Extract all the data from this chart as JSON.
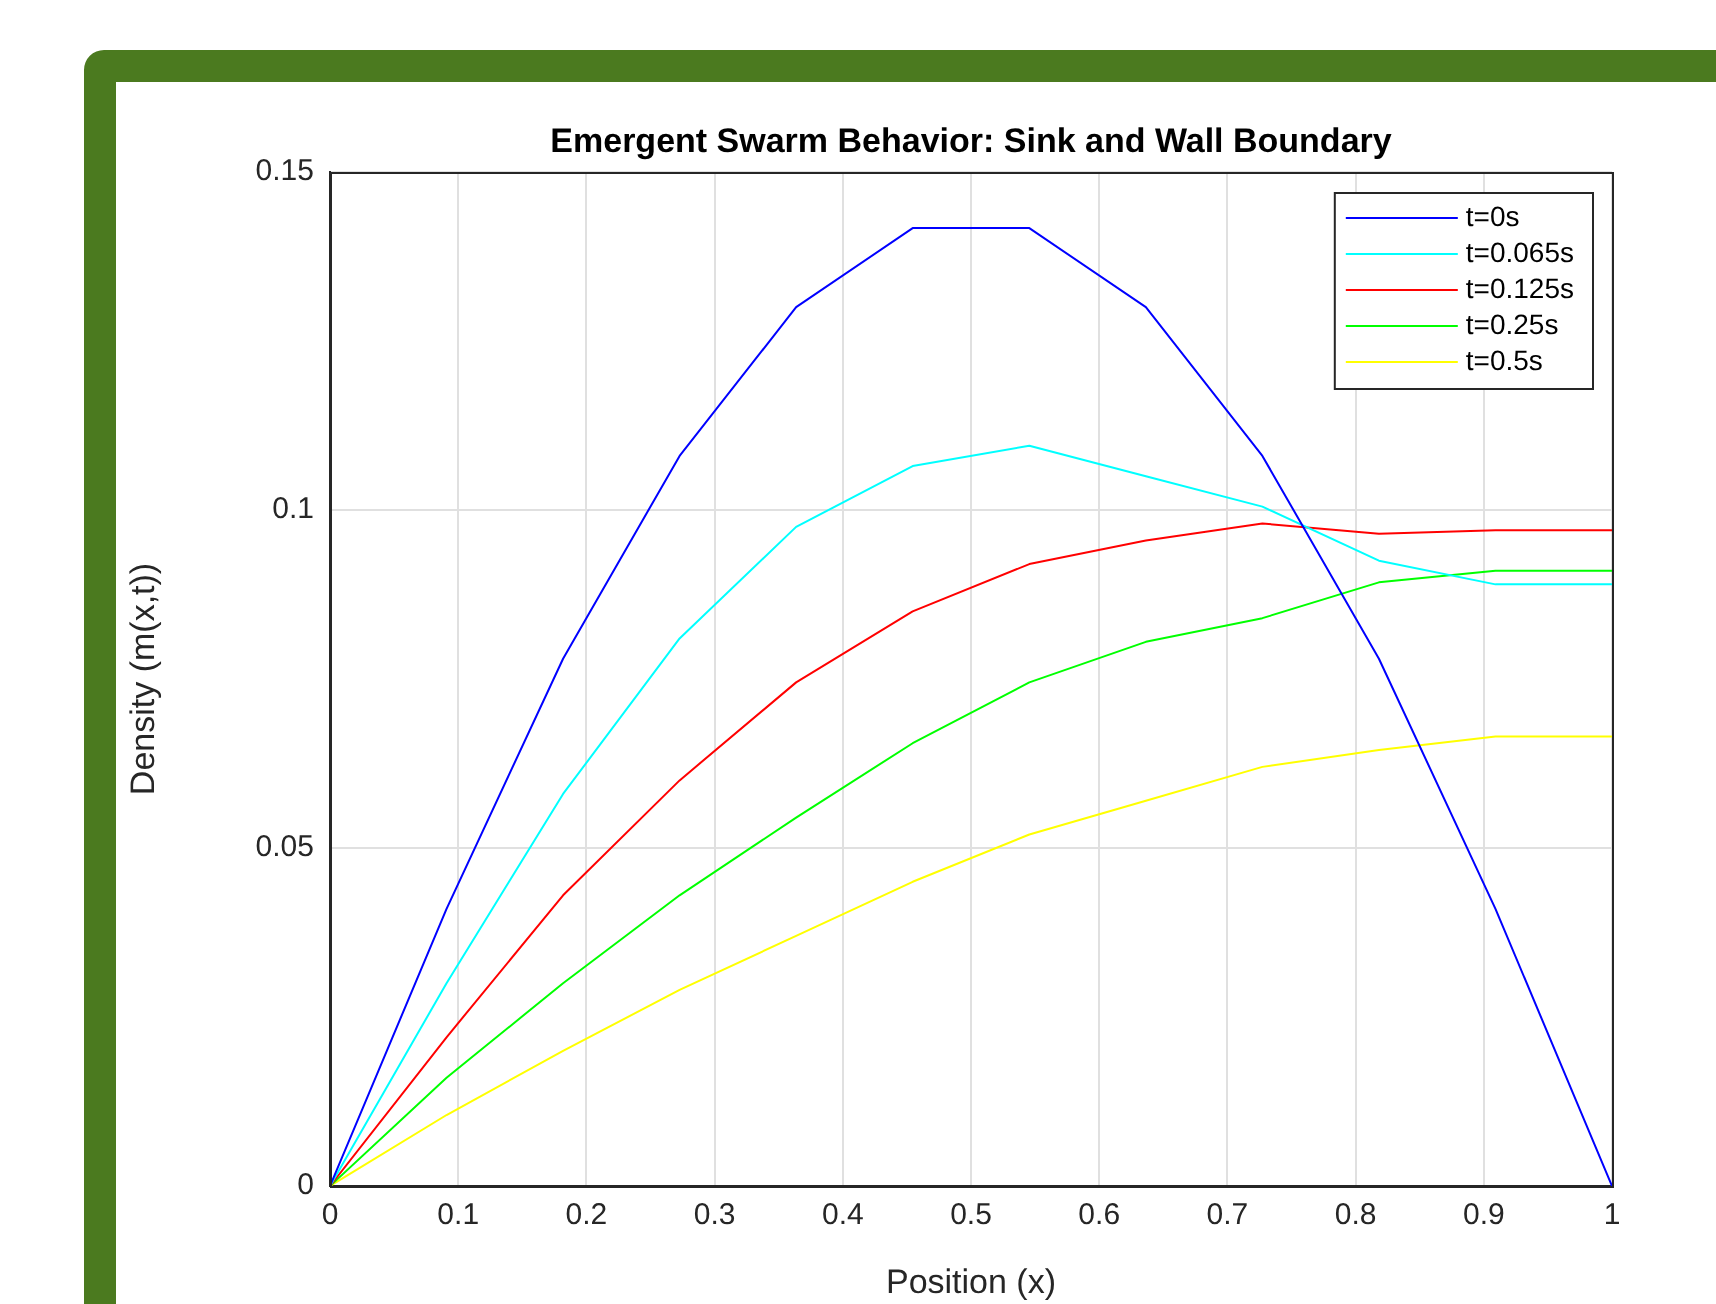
{
  "chart_data": {
    "type": "line",
    "title": "Emergent Swarm Behavior: Sink and Wall Boundary",
    "xlabel": "Position (x)",
    "ylabel": "Density (m(x,t))",
    "x": [
      0,
      0.0909,
      0.1818,
      0.2727,
      0.3636,
      0.4545,
      0.5455,
      0.6364,
      0.7273,
      0.8182,
      0.9091,
      1
    ],
    "series": [
      {
        "name": "t=0s",
        "color": "#0000ff",
        "values": [
          0,
          0.041,
          0.078,
          0.108,
          0.13,
          0.1417,
          0.1417,
          0.13,
          0.108,
          0.078,
          0.041,
          0
        ]
      },
      {
        "name": "t=0.065s",
        "color": "#00ffff",
        "values": [
          0,
          0.03,
          0.058,
          0.081,
          0.0975,
          0.1065,
          0.1095,
          0.105,
          0.1005,
          0.0925,
          0.089,
          0.089
        ]
      },
      {
        "name": "t=0.125s",
        "color": "#ff0000",
        "values": [
          0,
          0.022,
          0.043,
          0.06,
          0.0745,
          0.085,
          0.092,
          0.0955,
          0.098,
          0.0965,
          0.097,
          0.097
        ]
      },
      {
        "name": "t=0.25s",
        "color": "#00ff00",
        "values": [
          0,
          0.016,
          0.03,
          0.043,
          0.0545,
          0.0655,
          0.0745,
          0.0805,
          0.084,
          0.0893,
          0.091,
          0.091
        ]
      },
      {
        "name": "t=0.5s",
        "color": "#ffff00",
        "values": [
          0,
          0.0105,
          0.02,
          0.029,
          0.037,
          0.045,
          0.052,
          0.057,
          0.062,
          0.0645,
          0.0665,
          0.0665
        ]
      }
    ],
    "xlim": [
      0,
      1
    ],
    "xticks": [
      0,
      0.1,
      0.2,
      0.3,
      0.4,
      0.5,
      0.6,
      0.7,
      0.8,
      0.9,
      1
    ],
    "ylim": [
      0,
      0.15
    ],
    "yticks": [
      0,
      0.05,
      0.1,
      0.15
    ],
    "grid": true,
    "legend": "top right",
    "marker": "none",
    "line_style": "solid"
  }
}
